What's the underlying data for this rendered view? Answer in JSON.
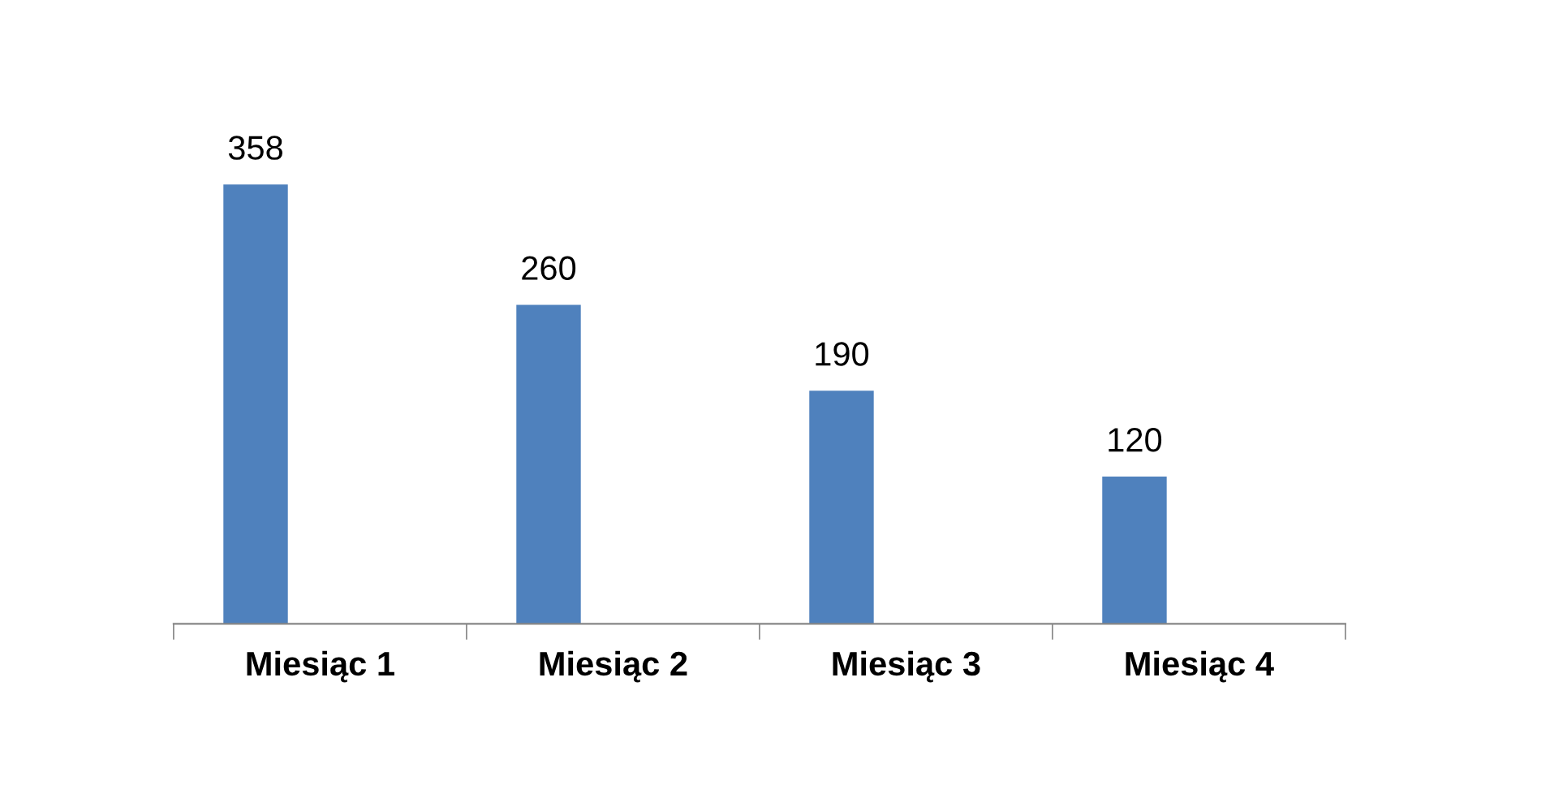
{
  "chart_data": {
    "type": "bar",
    "categories": [
      "Miesiąc 1",
      "Miesiąc 2",
      "Miesiąc 3",
      "Miesiąc 4"
    ],
    "values": [
      358,
      260,
      190,
      120
    ],
    "color": "#4f81bd",
    "data_labels": true,
    "tick_labels": "x",
    "grid": false,
    "legend": false
  }
}
